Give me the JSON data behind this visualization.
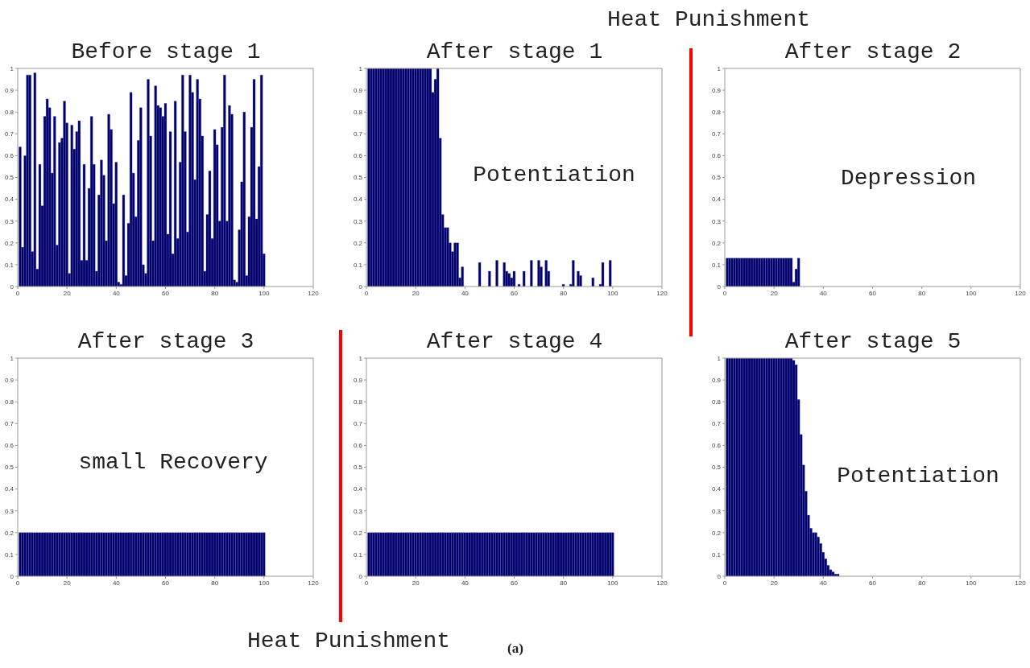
{
  "chart_data": [
    {
      "type": "bar",
      "title": "Before stage 1",
      "color": "#00006e",
      "xlim": [
        0,
        120
      ],
      "xticks": [
        0,
        20,
        40,
        60,
        80,
        100,
        120
      ],
      "ylim": [
        0,
        1
      ],
      "yticks": [
        0,
        0.1,
        0.2,
        0.3,
        0.4,
        0.5,
        0.6,
        0.7,
        0.8,
        0.9,
        1
      ],
      "x": [
        1,
        2,
        3,
        4,
        5,
        6,
        7,
        8,
        9,
        10,
        11,
        12,
        13,
        14,
        15,
        16,
        17,
        18,
        19,
        20,
        21,
        22,
        23,
        24,
        25,
        26,
        27,
        28,
        29,
        30,
        31,
        32,
        33,
        34,
        35,
        36,
        37,
        38,
        39,
        40,
        41,
        42,
        43,
        44,
        45,
        46,
        47,
        48,
        49,
        50,
        51,
        52,
        53,
        54,
        55,
        56,
        57,
        58,
        59,
        60,
        61,
        62,
        63,
        64,
        65,
        66,
        67,
        68,
        69,
        70,
        71,
        72,
        73,
        74,
        75,
        76,
        77,
        78,
        79,
        80,
        81,
        82,
        83,
        84,
        85,
        86,
        87,
        88,
        89,
        90,
        91,
        92,
        93,
        94,
        95,
        96,
        97,
        98,
        99,
        100
      ],
      "values": [
        0.64,
        0.18,
        0.6,
        0.97,
        0.97,
        0.16,
        0.98,
        0.08,
        0.56,
        0.37,
        0.78,
        0.86,
        0.82,
        0.52,
        0.78,
        0.19,
        0.66,
        0.68,
        0.85,
        0.75,
        0.06,
        0.74,
        0.63,
        0.71,
        0.76,
        0.12,
        0.56,
        0.12,
        0.45,
        0.78,
        0.56,
        0.07,
        0.42,
        0.58,
        0.51,
        0.21,
        0.79,
        0.72,
        0.38,
        0.57,
        0.02,
        0.01,
        0.42,
        0.05,
        0.29,
        0.89,
        0.52,
        0.32,
        0.67,
        0.82,
        0.1,
        0.06,
        0.95,
        0.69,
        0.21,
        0.92,
        0.83,
        0.82,
        0.78,
        0.84,
        0.24,
        0.71,
        0.15,
        0.85,
        0.22,
        0.57,
        0.97,
        0.71,
        0.25,
        0.97,
        0.89,
        0.49,
        0.95,
        0.86,
        0.69,
        0.07,
        0.33,
        0.53,
        0.22,
        0.72,
        0.65,
        0.3,
        0.73,
        0.97,
        0.3,
        0.83,
        0.79,
        0.03,
        0.02,
        0.26,
        0.48,
        0.8,
        0.05,
        0.32,
        0.73,
        0.95,
        0.31,
        0.55,
        0.97,
        0.15
      ]
    },
    {
      "type": "bar",
      "title": "After stage 1",
      "color": "#00006e",
      "xlim": [
        0,
        120
      ],
      "xticks": [
        0,
        20,
        40,
        60,
        80,
        100,
        120
      ],
      "ylim": [
        0,
        1
      ],
      "yticks": [
        0,
        0.1,
        0.2,
        0.3,
        0.4,
        0.5,
        0.6,
        0.7,
        0.8,
        0.9,
        1
      ],
      "annotations": [
        "Potentiation"
      ],
      "x": [
        1,
        2,
        3,
        4,
        5,
        6,
        7,
        8,
        9,
        10,
        11,
        12,
        13,
        14,
        15,
        16,
        17,
        18,
        19,
        20,
        21,
        22,
        23,
        24,
        25,
        26,
        27,
        28,
        29,
        30,
        31,
        32,
        33,
        34,
        35,
        36,
        37,
        38,
        39,
        40,
        41,
        42,
        43,
        44,
        45,
        46,
        47,
        48,
        49,
        50,
        51,
        52,
        53,
        54,
        55,
        56,
        57,
        58,
        59,
        60,
        61,
        62,
        63,
        64,
        65,
        66,
        67,
        68,
        69,
        70,
        71,
        72,
        73,
        74,
        75,
        76,
        77,
        78,
        79,
        80,
        81,
        82,
        83,
        84,
        85,
        86,
        87,
        88,
        89,
        90,
        91,
        92,
        93,
        94,
        95,
        96,
        97,
        98,
        99,
        100
      ],
      "values": [
        1,
        1,
        1,
        1,
        1,
        1,
        1,
        1,
        1,
        1,
        1,
        1,
        1,
        1,
        1,
        1,
        1,
        1,
        1,
        1,
        1,
        1,
        1,
        1,
        1,
        1,
        0.89,
        0.95,
        1,
        0.68,
        0.33,
        0.27,
        0.27,
        0.2,
        0.16,
        0.2,
        0.2,
        0.04,
        0.09,
        0,
        0,
        0,
        0,
        0,
        0,
        0.11,
        0,
        0,
        0,
        0.07,
        0,
        0,
        0.12,
        0,
        0,
        0.11,
        0.07,
        0.06,
        0.04,
        0.07,
        0,
        0.01,
        0,
        0.07,
        0,
        0,
        0.12,
        0,
        0,
        0.12,
        0.09,
        0,
        0.12,
        0.07,
        0,
        0,
        0,
        0,
        0,
        0.01,
        0,
        0,
        0.01,
        0.12,
        0,
        0.07,
        0.05,
        0,
        0,
        0,
        0,
        0.04,
        0,
        0,
        0.01,
        0.11,
        0,
        0,
        0.12,
        0
      ]
    },
    {
      "type": "bar",
      "title": "After stage 2",
      "color": "#00006e",
      "xlim": [
        0,
        120
      ],
      "xticks": [
        0,
        20,
        40,
        60,
        80,
        100,
        120
      ],
      "ylim": [
        0,
        1
      ],
      "yticks": [
        0,
        0.1,
        0.2,
        0.3,
        0.4,
        0.5,
        0.6,
        0.7,
        0.8,
        0.9,
        1
      ],
      "annotations": [
        "Depression",
        "Heat Punishment"
      ],
      "x": [
        1,
        2,
        3,
        4,
        5,
        6,
        7,
        8,
        9,
        10,
        11,
        12,
        13,
        14,
        15,
        16,
        17,
        18,
        19,
        20,
        21,
        22,
        23,
        24,
        25,
        26,
        27,
        28,
        29,
        30
      ],
      "values": [
        0.13,
        0.13,
        0.13,
        0.13,
        0.13,
        0.13,
        0.13,
        0.13,
        0.13,
        0.13,
        0.13,
        0.13,
        0.13,
        0.13,
        0.13,
        0.13,
        0.13,
        0.13,
        0.13,
        0.13,
        0.13,
        0.13,
        0.13,
        0.13,
        0.13,
        0.13,
        0.13,
        0.02,
        0.08,
        0.13
      ]
    },
    {
      "type": "bar",
      "title": "After stage 3",
      "color": "#00006e",
      "xlim": [
        0,
        120
      ],
      "xticks": [
        0,
        20,
        40,
        60,
        80,
        100,
        120
      ],
      "ylim": [
        0,
        1
      ],
      "yticks": [
        0,
        0.1,
        0.2,
        0.3,
        0.4,
        0.5,
        0.6,
        0.7,
        0.8,
        0.9,
        1
      ],
      "annotations": [
        "small Recovery",
        "Heat Punishment",
        "(a)"
      ],
      "x": [
        1,
        2,
        3,
        4,
        5,
        6,
        7,
        8,
        9,
        10,
        11,
        12,
        13,
        14,
        15,
        16,
        17,
        18,
        19,
        20,
        21,
        22,
        23,
        24,
        25,
        26,
        27,
        28,
        29,
        30,
        31,
        32,
        33,
        34,
        35,
        36,
        37,
        38,
        39,
        40,
        41,
        42,
        43,
        44,
        45,
        46,
        47,
        48,
        49,
        50,
        51,
        52,
        53,
        54,
        55,
        56,
        57,
        58,
        59,
        60,
        61,
        62,
        63,
        64,
        65,
        66,
        67,
        68,
        69,
        70,
        71,
        72,
        73,
        74,
        75,
        76,
        77,
        78,
        79,
        80,
        81,
        82,
        83,
        84,
        85,
        86,
        87,
        88,
        89,
        90,
        91,
        92,
        93,
        94,
        95,
        96,
        97,
        98,
        99,
        100
      ],
      "values": [
        0.2,
        0.2,
        0.2,
        0.2,
        0.2,
        0.2,
        0.2,
        0.2,
        0.2,
        0.2,
        0.2,
        0.2,
        0.2,
        0.2,
        0.2,
        0.2,
        0.2,
        0.2,
        0.2,
        0.2,
        0.2,
        0.2,
        0.2,
        0.2,
        0.2,
        0.2,
        0.2,
        0.2,
        0.2,
        0.2,
        0.2,
        0.2,
        0.2,
        0.2,
        0.2,
        0.2,
        0.2,
        0.2,
        0.2,
        0.2,
        0.2,
        0.2,
        0.2,
        0.2,
        0.2,
        0.2,
        0.2,
        0.2,
        0.2,
        0.2,
        0.2,
        0.2,
        0.2,
        0.2,
        0.2,
        0.2,
        0.2,
        0.2,
        0.2,
        0.2,
        0.2,
        0.2,
        0.2,
        0.2,
        0.2,
        0.2,
        0.2,
        0.2,
        0.2,
        0.2,
        0.2,
        0.2,
        0.2,
        0.2,
        0.2,
        0.2,
        0.2,
        0.2,
        0.2,
        0.2,
        0.2,
        0.2,
        0.2,
        0.2,
        0.2,
        0.2,
        0.2,
        0.2,
        0.2,
        0.2,
        0.2,
        0.2,
        0.2,
        0.2,
        0.2,
        0.2,
        0.2,
        0.2,
        0.2,
        0.2
      ]
    },
    {
      "type": "bar",
      "title": "After stage 4",
      "color": "#00006e",
      "xlim": [
        0,
        120
      ],
      "xticks": [
        0,
        20,
        40,
        60,
        80,
        100,
        120
      ],
      "ylim": [
        0,
        1
      ],
      "yticks": [
        0,
        0.1,
        0.2,
        0.3,
        0.4,
        0.5,
        0.6,
        0.7,
        0.8,
        0.9,
        1
      ],
      "x": [
        1,
        2,
        3,
        4,
        5,
        6,
        7,
        8,
        9,
        10,
        11,
        12,
        13,
        14,
        15,
        16,
        17,
        18,
        19,
        20,
        21,
        22,
        23,
        24,
        25,
        26,
        27,
        28,
        29,
        30,
        31,
        32,
        33,
        34,
        35,
        36,
        37,
        38,
        39,
        40,
        41,
        42,
        43,
        44,
        45,
        46,
        47,
        48,
        49,
        50,
        51,
        52,
        53,
        54,
        55,
        56,
        57,
        58,
        59,
        60,
        61,
        62,
        63,
        64,
        65,
        66,
        67,
        68,
        69,
        70,
        71,
        72,
        73,
        74,
        75,
        76,
        77,
        78,
        79,
        80,
        81,
        82,
        83,
        84,
        85,
        86,
        87,
        88,
        89,
        90,
        91,
        92,
        93,
        94,
        95,
        96,
        97,
        98,
        99,
        100
      ],
      "values": [
        0.2,
        0.2,
        0.2,
        0.2,
        0.2,
        0.2,
        0.2,
        0.2,
        0.2,
        0.2,
        0.2,
        0.2,
        0.2,
        0.2,
        0.2,
        0.2,
        0.2,
        0.2,
        0.2,
        0.2,
        0.2,
        0.2,
        0.2,
        0.2,
        0.2,
        0.2,
        0.2,
        0.2,
        0.2,
        0.2,
        0.2,
        0.2,
        0.2,
        0.2,
        0.2,
        0.2,
        0.2,
        0.2,
        0.2,
        0.2,
        0.2,
        0.2,
        0.2,
        0.2,
        0.2,
        0.2,
        0.2,
        0.2,
        0.2,
        0.2,
        0.2,
        0.2,
        0.2,
        0.2,
        0.2,
        0.2,
        0.2,
        0.2,
        0.2,
        0.2,
        0.2,
        0.2,
        0.2,
        0.2,
        0.2,
        0.2,
        0.2,
        0.2,
        0.2,
        0.2,
        0.2,
        0.2,
        0.2,
        0.2,
        0.2,
        0.2,
        0.2,
        0.2,
        0.2,
        0.2,
        0.2,
        0.2,
        0.2,
        0.2,
        0.2,
        0.2,
        0.2,
        0.2,
        0.2,
        0.2,
        0.2,
        0.2,
        0.2,
        0.2,
        0.2,
        0.2,
        0.2,
        0.2,
        0.2,
        0.2
      ]
    },
    {
      "type": "bar",
      "title": "After stage 5",
      "color": "#00006e",
      "xlim": [
        0,
        120
      ],
      "xticks": [
        0,
        20,
        40,
        60,
        80,
        100,
        120
      ],
      "ylim": [
        0,
        1
      ],
      "yticks": [
        0,
        0.1,
        0.2,
        0.3,
        0.4,
        0.5,
        0.6,
        0.7,
        0.8,
        0.9,
        1
      ],
      "annotations": [
        "Potentiation"
      ],
      "x": [
        1,
        2,
        3,
        4,
        5,
        6,
        7,
        8,
        9,
        10,
        11,
        12,
        13,
        14,
        15,
        16,
        17,
        18,
        19,
        20,
        21,
        22,
        23,
        24,
        25,
        26,
        27,
        28,
        29,
        30,
        31,
        32,
        33,
        34,
        35,
        36,
        37,
        38,
        39,
        40,
        41,
        42,
        43,
        44,
        45,
        46
      ],
      "values": [
        1,
        1,
        1,
        1,
        1,
        1,
        1,
        1,
        1,
        1,
        1,
        1,
        1,
        1,
        1,
        1,
        1,
        1,
        1,
        1,
        1,
        1,
        1,
        1,
        1,
        1,
        1,
        0.99,
        0.97,
        0.81,
        0.65,
        0.51,
        0.39,
        0.28,
        0.22,
        0.2,
        0.2,
        0.18,
        0.15,
        0.11,
        0.08,
        0.05,
        0.03,
        0.02,
        0.01,
        0.01
      ]
    }
  ]
}
